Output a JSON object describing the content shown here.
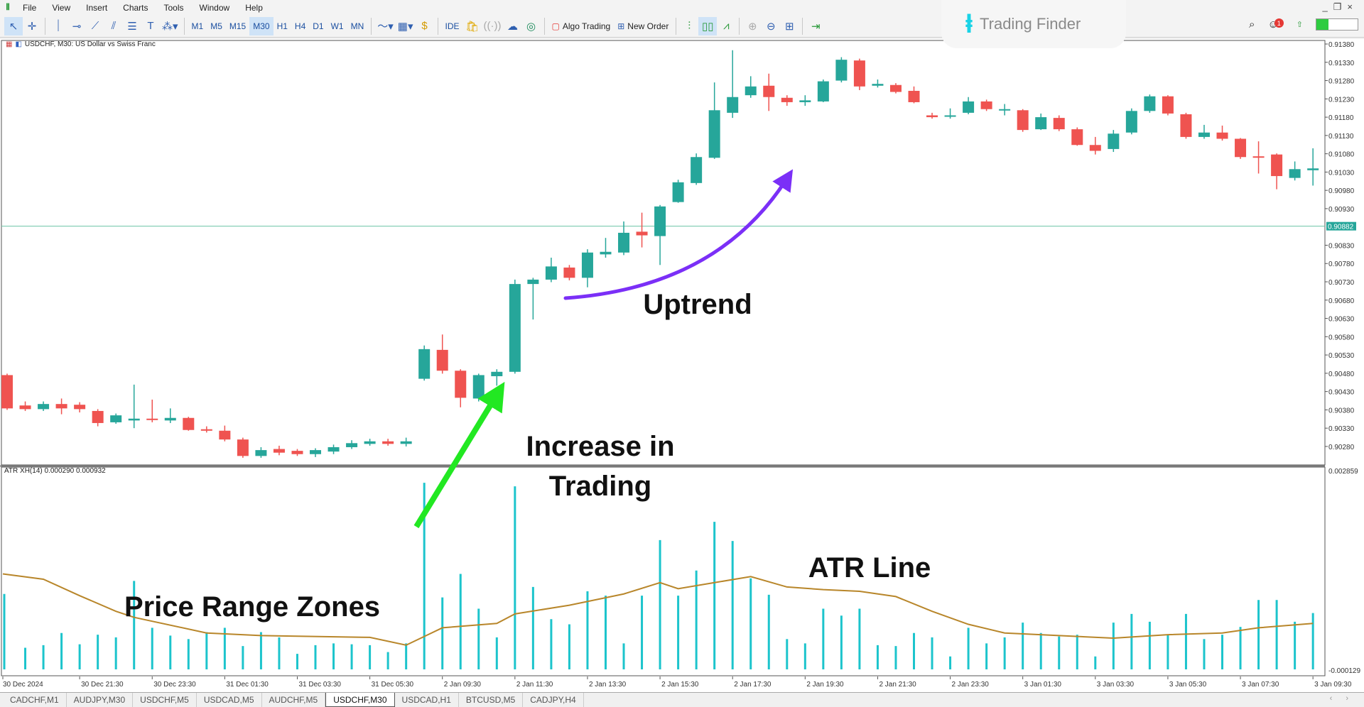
{
  "menu": {
    "items": [
      "File",
      "View",
      "Insert",
      "Charts",
      "Tools",
      "Window",
      "Help"
    ]
  },
  "toolbar": {
    "timeframes": [
      "M1",
      "M5",
      "M15",
      "M30",
      "H1",
      "H4",
      "D1",
      "W1",
      "MN"
    ],
    "active_timeframe": "M30",
    "ide_label": "IDE",
    "algo_trading_label": "Algo Trading",
    "new_order_label": "New Order",
    "notification_count": "1",
    "level_fill": 0.3
  },
  "logo": {
    "name": "Trading Finder"
  },
  "chart": {
    "title": "USDCHF, M30:  US Dollar vs Swiss Franc",
    "indicator_label": "ATR XH(14) 0.000290 0.000932",
    "current_price": "0.90882",
    "indicator_top": "0.002859",
    "indicator_bottom": "-0.000129",
    "colors": {
      "bull": "#26a69a",
      "bear": "#ef5350",
      "histogram": "#1cc4cc",
      "atr_line": "#b8862a",
      "price_line": "#6cc4a4",
      "uptrend_arrow": "#7b2ff7",
      "volume_arrow": "#22e822"
    }
  },
  "annotations": {
    "uptrend": "Uptrend",
    "increase_1": "Increase in",
    "increase_2": "Trading",
    "price_range": "Price Range Zones",
    "atr_line": "ATR Line"
  },
  "tabs": [
    {
      "label": "CADCHF,M1"
    },
    {
      "label": "AUDJPY,M30"
    },
    {
      "label": "USDCHF,M5"
    },
    {
      "label": "USDCAD,M5"
    },
    {
      "label": "AUDCHF,M5"
    },
    {
      "label": "USDCHF,M30",
      "active": true
    },
    {
      "label": "USDCAD,H1"
    },
    {
      "label": "BTCUSD,M5"
    },
    {
      "label": "CADJPY,H4"
    }
  ],
  "chart_data": {
    "type": "candlestick",
    "symbol": "USDCHF",
    "timeframe": "M30",
    "ylim": [
      0.9027,
      0.9139
    ],
    "price_ticks": [
      "0.91380",
      "0.91330",
      "0.91280",
      "0.91230",
      "0.91180",
      "0.91130",
      "0.91080",
      "0.91030",
      "0.90980",
      "0.90930",
      "0.90830",
      "0.90780",
      "0.90730",
      "0.90680",
      "0.90630",
      "0.90580",
      "0.90530",
      "0.90480",
      "0.90430",
      "0.90380",
      "0.90330",
      "0.90280"
    ],
    "time_labels": [
      "30 Dec 2024",
      "30 Dec 21:30",
      "30 Dec 23:30",
      "31 Dec 01:30",
      "31 Dec 03:30",
      "31 Dec 05:30",
      "2 Jan 09:30",
      "2 Jan 11:30",
      "2 Jan 13:30",
      "2 Jan 15:30",
      "2 Jan 17:30",
      "2 Jan 19:30",
      "2 Jan 21:30",
      "2 Jan 23:30",
      "3 Jan 01:30",
      "3 Jan 03:30",
      "3 Jan 05:30",
      "3 Jan 07:30",
      "3 Jan 09:30"
    ],
    "ohlc_fields": [
      "open",
      "high",
      "low",
      "close"
    ],
    "candles": [
      [
        0.90475,
        0.90479,
        0.9038,
        0.90384
      ],
      [
        0.90392,
        0.90403,
        0.90377,
        0.90382
      ],
      [
        0.90382,
        0.90403,
        0.90377,
        0.90396
      ],
      [
        0.90396,
        0.90411,
        0.90368,
        0.90384
      ],
      [
        0.90394,
        0.90401,
        0.90373,
        0.90382
      ],
      [
        0.90377,
        0.90382,
        0.90335,
        0.90344
      ],
      [
        0.90346,
        0.9037,
        0.90342,
        0.90365
      ],
      [
        0.90351,
        0.90449,
        0.9033,
        0.90356
      ],
      [
        0.90356,
        0.90408,
        0.90346,
        0.90354
      ],
      [
        0.90351,
        0.90384,
        0.90344,
        0.90358
      ],
      [
        0.90358,
        0.90361,
        0.90323,
        0.90325
      ],
      [
        0.90327,
        0.90335,
        0.90318,
        0.90323
      ],
      [
        0.90323,
        0.90337,
        0.90294,
        0.90299
      ],
      [
        0.90299,
        0.90304,
        0.90249,
        0.90254
      ],
      [
        0.90254,
        0.90278,
        0.90249,
        0.9027
      ],
      [
        0.90273,
        0.90282,
        0.90256,
        0.90263
      ],
      [
        0.90268,
        0.90273,
        0.90254,
        0.90259
      ],
      [
        0.90259,
        0.90275,
        0.90251,
        0.9027
      ],
      [
        0.90266,
        0.90285,
        0.90259,
        0.90278
      ],
      [
        0.90278,
        0.90297,
        0.90273,
        0.90289
      ],
      [
        0.90287,
        0.90301,
        0.90282,
        0.90294
      ],
      [
        0.90294,
        0.90301,
        0.90282,
        0.90287
      ],
      [
        0.90287,
        0.90304,
        0.9028,
        0.90294
      ],
      [
        0.90465,
        0.90556,
        0.9046,
        0.90546
      ],
      [
        0.90544,
        0.90586,
        0.90479,
        0.90487
      ],
      [
        0.90487,
        0.90491,
        0.90387,
        0.90413
      ],
      [
        0.90411,
        0.90479,
        0.90403,
        0.90475
      ],
      [
        0.90472,
        0.90491,
        0.90446,
        0.90484
      ],
      [
        0.90484,
        0.90736,
        0.90479,
        0.90724
      ],
      [
        0.90724,
        0.90741,
        0.90627,
        0.90736
      ],
      [
        0.90736,
        0.90796,
        0.90729,
        0.90772
      ],
      [
        0.90769,
        0.90776,
        0.90734,
        0.90741
      ],
      [
        0.90741,
        0.90819,
        0.90715,
        0.9081
      ],
      [
        0.90805,
        0.9085,
        0.90796,
        0.90812
      ],
      [
        0.9081,
        0.90895,
        0.90803,
        0.90864
      ],
      [
        0.90867,
        0.90919,
        0.90824,
        0.90857
      ],
      [
        0.90855,
        0.9094,
        0.90776,
        0.90936
      ],
      [
        0.90948,
        0.91009,
        0.90946,
        0.91002
      ],
      [
        0.91,
        0.91081,
        0.90995,
        0.91071
      ],
      [
        0.91069,
        0.91275,
        0.91066,
        0.91199
      ],
      [
        0.91192,
        0.91363,
        0.91178,
        0.91235
      ],
      [
        0.9124,
        0.91292,
        0.91233,
        0.91264
      ],
      [
        0.91266,
        0.91299,
        0.91197,
        0.91235
      ],
      [
        0.91233,
        0.9124,
        0.91211,
        0.91221
      ],
      [
        0.91221,
        0.9124,
        0.91211,
        0.91226
      ],
      [
        0.91223,
        0.91283,
        0.91221,
        0.91278
      ],
      [
        0.9128,
        0.91344,
        0.91275,
        0.91337
      ],
      [
        0.91335,
        0.9134,
        0.91254,
        0.91264
      ],
      [
        0.91266,
        0.91283,
        0.91261,
        0.91271
      ],
      [
        0.91268,
        0.91273,
        0.91245,
        0.91249
      ],
      [
        0.91252,
        0.91264,
        0.91218,
        0.91221
      ],
      [
        0.91185,
        0.91192,
        0.91176,
        0.9118
      ],
      [
        0.91183,
        0.91204,
        0.91176,
        0.91185
      ],
      [
        0.91192,
        0.91235,
        0.91188,
        0.91223
      ],
      [
        0.91223,
        0.91228,
        0.91197,
        0.91202
      ],
      [
        0.91199,
        0.91216,
        0.91185,
        0.91202
      ],
      [
        0.91199,
        0.91202,
        0.9114,
        0.91145
      ],
      [
        0.91147,
        0.9119,
        0.91145,
        0.9118
      ],
      [
        0.91178,
        0.91185,
        0.91142,
        0.91147
      ],
      [
        0.91147,
        0.91152,
        0.91102,
        0.91104
      ],
      [
        0.91104,
        0.91126,
        0.91078,
        0.91088
      ],
      [
        0.91093,
        0.91145,
        0.91085,
        0.91135
      ],
      [
        0.91138,
        0.91204,
        0.91133,
        0.91197
      ],
      [
        0.91197,
        0.91242,
        0.91192,
        0.91237
      ],
      [
        0.91237,
        0.9124,
        0.91185,
        0.9119
      ],
      [
        0.91188,
        0.91192,
        0.91121,
        0.91126
      ],
      [
        0.91126,
        0.91159,
        0.91121,
        0.91138
      ],
      [
        0.91138,
        0.91157,
        0.91116,
        0.91121
      ],
      [
        0.91121,
        0.91123,
        0.91066,
        0.91071
      ],
      [
        0.91073,
        0.91114,
        0.91026,
        0.91071
      ],
      [
        0.91078,
        0.91081,
        0.90983,
        0.91019
      ],
      [
        0.91014,
        0.91059,
        0.91007,
        0.91038
      ],
      [
        0.91035,
        0.91095,
        0.90993,
        0.9104
      ]
    ],
    "indicator": {
      "name": "ATR XH(14)",
      "ylim": [
        -0.000129,
        0.002859
      ],
      "histogram": [
        0.001041,
        0.000254,
        0.000292,
        0.00047,
        0.000305,
        0.000445,
        0.000406,
        0.001232,
        0.000546,
        0.000432,
        0.000381,
        0.000483,
        0.000546,
        0.000279,
        0.000483,
        0.000406,
        0.000165,
        0.000292,
        0.000318,
        0.000305,
        0.000292,
        0.000191,
        0.000318,
        0.002667,
        0.000991,
        0.001334,
        0.000826,
        0.000406,
        0.002616,
        0.001143,
        0.000673,
        0.000597,
        0.00108,
        0.001016,
        0.000318,
        0.001016,
        0.001829,
        0.001016,
        0.001384,
        0.002096,
        0.001816,
        0.00127,
        0.001029,
        0.000381,
        0.000318,
        0.000826,
        0.000724,
        0.000826,
        0.000292,
        0.000279,
        0.00047,
        0.000406,
        0.000127,
        0.000546,
        0.000318,
        0.000406,
        0.000622,
        0.00047,
        0.000419,
        0.000445,
        0.000127,
        0.000622,
        0.000749,
        0.000635,
        0.000445,
        0.000749,
        0.000381,
        0.000445,
        0.000559,
        0.000953,
        0.000953,
        0.000635,
        0.000762
      ],
      "atr_line": [
        [
          0,
          0.001334
        ],
        [
          2,
          0.001257
        ],
        [
          4,
          0.001016
        ],
        [
          6,
          0.000787
        ],
        [
          7,
          0.000699
        ],
        [
          11,
          0.00047
        ],
        [
          14,
          0.000432
        ],
        [
          20,
          0.000406
        ],
        [
          22,
          0.000292
        ],
        [
          24,
          0.000546
        ],
        [
          27,
          0.00061
        ],
        [
          28,
          0.000749
        ],
        [
          31,
          0.000876
        ],
        [
          34,
          0.001041
        ],
        [
          36,
          0.001207
        ],
        [
          37,
          0.001118
        ],
        [
          39,
          0.001207
        ],
        [
          41,
          0.001295
        ],
        [
          43,
          0.001143
        ],
        [
          45,
          0.001105
        ],
        [
          47,
          0.00108
        ],
        [
          49,
          0.001003
        ],
        [
          51,
          0.000787
        ],
        [
          53,
          0.000597
        ],
        [
          55,
          0.00047
        ],
        [
          58,
          0.000432
        ],
        [
          61,
          0.000394
        ],
        [
          64,
          0.000445
        ],
        [
          67,
          0.00047
        ],
        [
          69,
          0.000546
        ],
        [
          72,
          0.00061
        ]
      ]
    }
  }
}
